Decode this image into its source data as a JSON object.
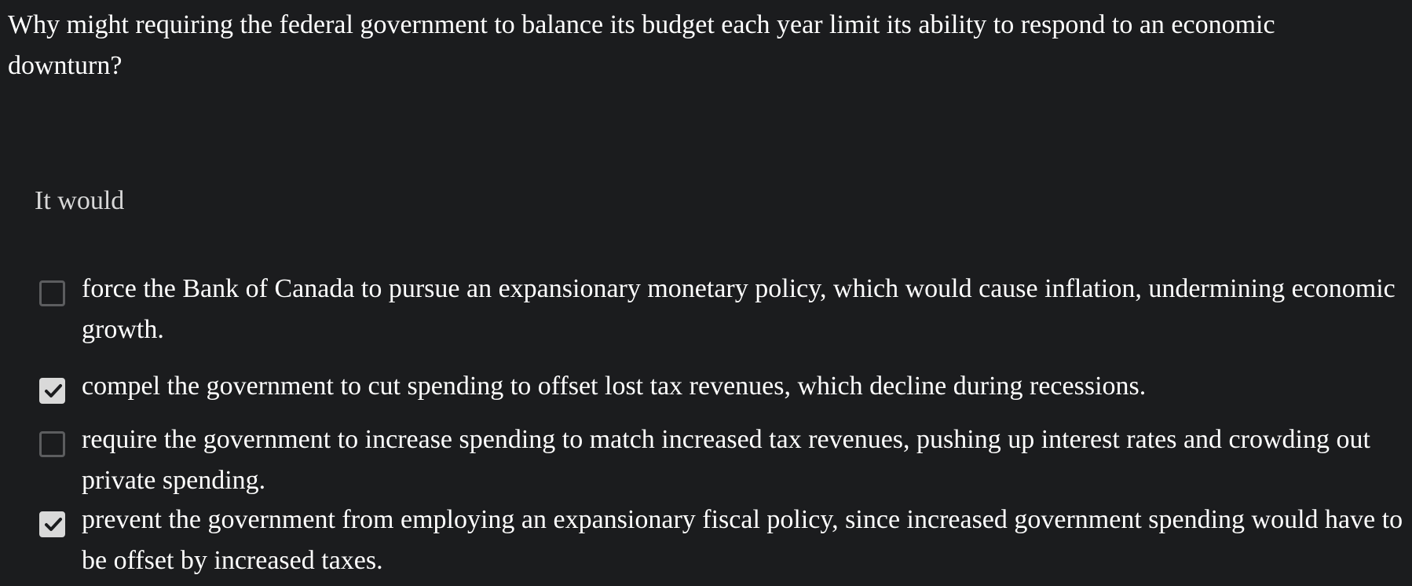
{
  "question": {
    "text": "Why might requiring the federal government to balance its budget each year limit its ability to respond to an economic downturn?"
  },
  "stem": {
    "text": "It would"
  },
  "options": [
    {
      "text": "force the Bank of Canada to pursue an expansionary monetary policy, which would cause inflation, undermining economic growth.",
      "checked": false
    },
    {
      "text": "compel the government to cut spending to offset lost tax revenues, which decline during recessions.",
      "checked": true
    },
    {
      "text": "require the government to increase spending to match increased tax revenues, pushing up interest rates and crowding out private spending.",
      "checked": false
    },
    {
      "text": "prevent the government from employing an expansionary fiscal policy, since increased government spending would have to be offset by increased taxes.",
      "checked": true
    }
  ],
  "colors": {
    "background": "#1b1c1e",
    "text": "#ffffff",
    "checkbox_border": "#5c5d5f",
    "checkbox_checked_fill": "#d9d9d9",
    "checkmark": "#1b1c1e"
  },
  "icons": {
    "checked": "checkmark-icon"
  }
}
